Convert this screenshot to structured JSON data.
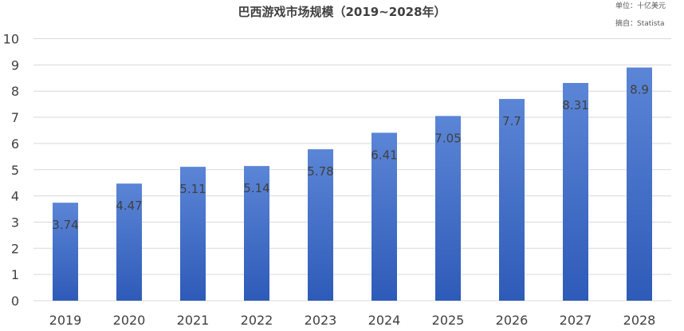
{
  "chart_data": {
    "type": "bar",
    "title": "巴西游戏市场规模（2019~2028年）",
    "unit_note": "单位：十亿美元",
    "source_note": "摘自：Statista",
    "categories": [
      "2019",
      "2020",
      "2021",
      "2022",
      "2023",
      "2024",
      "2025",
      "2026",
      "2027",
      "2028"
    ],
    "values": [
      3.74,
      4.47,
      5.11,
      5.14,
      5.78,
      6.41,
      7.05,
      7.7,
      8.31,
      8.9
    ],
    "data_labels": [
      "3.74",
      "4.47",
      "5.11",
      "5.14",
      "5.78",
      "6.41",
      "7.05",
      "7.7",
      "8.31",
      "8.9"
    ],
    "y_ticks": [
      "0",
      "1",
      "2",
      "3",
      "4",
      "5",
      "6",
      "7",
      "8",
      "9",
      "10"
    ],
    "ylim": [
      0,
      10
    ],
    "xlabel": "",
    "ylabel": "",
    "grid": true,
    "legend": "none",
    "colors": {
      "bar_top": "#5B85D6",
      "bar_bottom": "#2E5BB8",
      "grid": "#D9D9D9",
      "tick_text": "#404040",
      "data_label": "#404040"
    }
  }
}
